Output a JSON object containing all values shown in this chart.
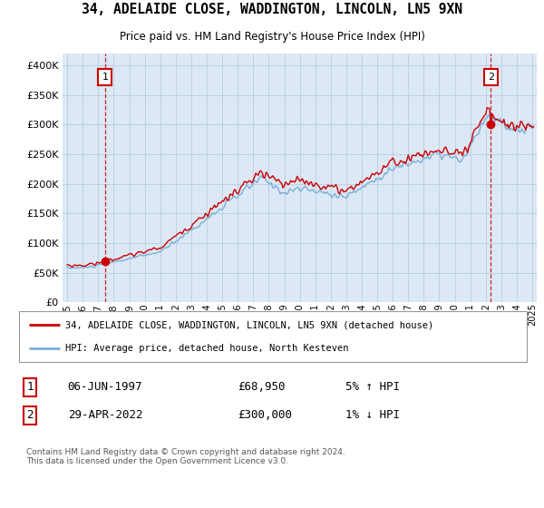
{
  "title": "34, ADELAIDE CLOSE, WADDINGTON, LINCOLN, LN5 9XN",
  "subtitle": "Price paid vs. HM Land Registry's House Price Index (HPI)",
  "legend_line1": "34, ADELAIDE CLOSE, WADDINGTON, LINCOLN, LN5 9XN (detached house)",
  "legend_line2": "HPI: Average price, detached house, North Kesteven",
  "annotation1_label": "1",
  "annotation1_date": "06-JUN-1997",
  "annotation1_price": "£68,950",
  "annotation1_hpi": "5% ↑ HPI",
  "annotation2_label": "2",
  "annotation2_date": "29-APR-2022",
  "annotation2_price": "£300,000",
  "annotation2_hpi": "1% ↓ HPI",
  "footnote": "Contains HM Land Registry data © Crown copyright and database right 2024.\nThis data is licensed under the Open Government Licence v3.0.",
  "background_color": "#ffffff",
  "plot_bg_color": "#dce8f5",
  "grid_color": "#b0c8e0",
  "hpi_line_color": "#7bafd4",
  "price_line_color": "#cc0000",
  "dashed_line_color": "#cc0000",
  "marker_color": "#cc0000",
  "ylim": [
    0,
    420000
  ],
  "yticks": [
    0,
    50000,
    100000,
    150000,
    200000,
    250000,
    300000,
    350000,
    400000
  ],
  "xlabel_years": [
    "1995",
    "1996",
    "1997",
    "1998",
    "1999",
    "2000",
    "2001",
    "2002",
    "2003",
    "2004",
    "2005",
    "2006",
    "2007",
    "2008",
    "2009",
    "2010",
    "2011",
    "2012",
    "2013",
    "2014",
    "2015",
    "2016",
    "2017",
    "2018",
    "2019",
    "2020",
    "2021",
    "2022",
    "2023",
    "2024",
    "2025"
  ],
  "sale1_year": 1997.44,
  "sale1_value": 68950,
  "sale2_year": 2022.33,
  "sale2_value": 300000,
  "xlim_left": 1994.7,
  "xlim_right": 2025.3
}
